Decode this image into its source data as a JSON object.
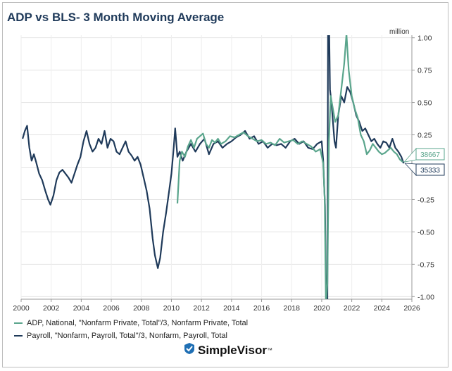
{
  "title": "ADP vs BLS- 3 Month Moving Average",
  "unit_label": "million",
  "brand": {
    "name": "SimpleVisor",
    "tm": "™"
  },
  "chart_data": {
    "type": "line",
    "title": "ADP vs BLS- 3 Month Moving Average",
    "ylabel": "million",
    "xlim": [
      2000,
      2026
    ],
    "ylim": [
      -1.02,
      1.02
    ],
    "x_ticks": [
      "2000",
      "2002",
      "2004",
      "2006",
      "2008",
      "2010",
      "2012",
      "2014",
      "2016",
      "2018",
      "2020",
      "2022",
      "2024",
      "2026"
    ],
    "y_ticks": [
      "1.00",
      "0.75",
      "0.50",
      "0.25",
      "",
      "-0.25",
      "-0.50",
      "-0.75",
      "-1.00"
    ],
    "y_tick_values": [
      1.0,
      0.75,
      0.5,
      0.25,
      0,
      -0.25,
      -0.5,
      -0.75,
      -1.0
    ],
    "grid": true,
    "legend_position": "bottom-left",
    "series": [
      {
        "name": "ADP, National, \"Nonfarm Private, Total\"/3, Nonfarm Private, Total",
        "color": "#5aa58c",
        "last_label": "38667",
        "points": [
          [
            2010.4,
            -0.28
          ],
          [
            2010.55,
            0.05
          ],
          [
            2010.7,
            0.12
          ],
          [
            2010.9,
            0.08
          ],
          [
            2011.1,
            0.16
          ],
          [
            2011.3,
            0.21
          ],
          [
            2011.5,
            0.15
          ],
          [
            2011.7,
            0.22
          ],
          [
            2011.9,
            0.24
          ],
          [
            2012.1,
            0.26
          ],
          [
            2012.3,
            0.18
          ],
          [
            2012.5,
            0.15
          ],
          [
            2012.7,
            0.21
          ],
          [
            2012.9,
            0.19
          ],
          [
            2013.1,
            0.22
          ],
          [
            2013.3,
            0.18
          ],
          [
            2013.6,
            0.2
          ],
          [
            2013.9,
            0.24
          ],
          [
            2014.2,
            0.23
          ],
          [
            2014.5,
            0.25
          ],
          [
            2014.8,
            0.27
          ],
          [
            2015.1,
            0.24
          ],
          [
            2015.4,
            0.22
          ],
          [
            2015.7,
            0.2
          ],
          [
            2016.0,
            0.21
          ],
          [
            2016.3,
            0.18
          ],
          [
            2016.6,
            0.19
          ],
          [
            2016.9,
            0.17
          ],
          [
            2017.2,
            0.22
          ],
          [
            2017.5,
            0.19
          ],
          [
            2017.8,
            0.2
          ],
          [
            2018.1,
            0.21
          ],
          [
            2018.4,
            0.18
          ],
          [
            2018.7,
            0.2
          ],
          [
            2019.0,
            0.18
          ],
          [
            2019.3,
            0.16
          ],
          [
            2019.6,
            0.12
          ],
          [
            2019.9,
            0.14
          ],
          [
            2020.1,
            0.03
          ],
          [
            2020.2,
            -0.25
          ],
          [
            2020.28,
            -1.05
          ],
          [
            2020.38,
            -0.9
          ],
          [
            2020.48,
            0.2
          ],
          [
            2020.6,
            0.55
          ],
          [
            2020.75,
            0.45
          ],
          [
            2020.9,
            0.35
          ],
          [
            2021.1,
            0.4
          ],
          [
            2021.3,
            0.6
          ],
          [
            2021.5,
            0.8
          ],
          [
            2021.65,
            1.03
          ],
          [
            2021.8,
            0.75
          ],
          [
            2022.0,
            0.55
          ],
          [
            2022.2,
            0.45
          ],
          [
            2022.4,
            0.38
          ],
          [
            2022.6,
            0.25
          ],
          [
            2022.8,
            0.2
          ],
          [
            2023.0,
            0.1
          ],
          [
            2023.2,
            0.13
          ],
          [
            2023.4,
            0.18
          ],
          [
            2023.6,
            0.15
          ],
          [
            2023.8,
            0.12
          ],
          [
            2024.0,
            0.1
          ],
          [
            2024.2,
            0.11
          ],
          [
            2024.4,
            0.13
          ],
          [
            2024.6,
            0.15
          ],
          [
            2024.8,
            0.12
          ],
          [
            2025.0,
            0.1
          ],
          [
            2025.2,
            0.06
          ],
          [
            2025.4,
            0.04
          ]
        ]
      },
      {
        "name": "Payroll, \"Nonfarm, Payroll, Total\"/3, Nonfarm, Payroll, Total",
        "color": "#1f3a5a",
        "last_label": "35333",
        "points": [
          [
            2000.1,
            0.22
          ],
          [
            2000.25,
            0.28
          ],
          [
            2000.4,
            0.32
          ],
          [
            2000.55,
            0.15
          ],
          [
            2000.7,
            0.05
          ],
          [
            2000.85,
            0.1
          ],
          [
            2001.0,
            0.04
          ],
          [
            2001.2,
            -0.05
          ],
          [
            2001.4,
            -0.1
          ],
          [
            2001.6,
            -0.18
          ],
          [
            2001.8,
            -0.25
          ],
          [
            2001.95,
            -0.29
          ],
          [
            2002.15,
            -0.22
          ],
          [
            2002.35,
            -0.1
          ],
          [
            2002.55,
            -0.04
          ],
          [
            2002.75,
            -0.02
          ],
          [
            2002.95,
            -0.05
          ],
          [
            2003.15,
            -0.08
          ],
          [
            2003.35,
            -0.12
          ],
          [
            2003.55,
            -0.05
          ],
          [
            2003.75,
            0.02
          ],
          [
            2003.95,
            0.08
          ],
          [
            2004.15,
            0.2
          ],
          [
            2004.35,
            0.28
          ],
          [
            2004.55,
            0.18
          ],
          [
            2004.75,
            0.12
          ],
          [
            2004.95,
            0.15
          ],
          [
            2005.15,
            0.22
          ],
          [
            2005.35,
            0.18
          ],
          [
            2005.55,
            0.28
          ],
          [
            2005.75,
            0.15
          ],
          [
            2005.95,
            0.22
          ],
          [
            2006.15,
            0.2
          ],
          [
            2006.35,
            0.12
          ],
          [
            2006.55,
            0.1
          ],
          [
            2006.75,
            0.15
          ],
          [
            2006.95,
            0.2
          ],
          [
            2007.15,
            0.12
          ],
          [
            2007.35,
            0.09
          ],
          [
            2007.55,
            0.05
          ],
          [
            2007.75,
            0.08
          ],
          [
            2007.95,
            0.02
          ],
          [
            2008.15,
            -0.08
          ],
          [
            2008.35,
            -0.18
          ],
          [
            2008.55,
            -0.32
          ],
          [
            2008.75,
            -0.55
          ],
          [
            2008.9,
            -0.68
          ],
          [
            2009.1,
            -0.78
          ],
          [
            2009.25,
            -0.7
          ],
          [
            2009.45,
            -0.5
          ],
          [
            2009.65,
            -0.35
          ],
          [
            2009.85,
            -0.18
          ],
          [
            2010.0,
            -0.05
          ],
          [
            2010.15,
            0.15
          ],
          [
            2010.25,
            0.3
          ],
          [
            2010.4,
            0.08
          ],
          [
            2010.55,
            0.12
          ],
          [
            2010.75,
            0.05
          ],
          [
            2011.0,
            0.12
          ],
          [
            2011.3,
            0.18
          ],
          [
            2011.6,
            0.12
          ],
          [
            2011.9,
            0.18
          ],
          [
            2012.2,
            0.22
          ],
          [
            2012.5,
            0.1
          ],
          [
            2012.8,
            0.18
          ],
          [
            2013.1,
            0.2
          ],
          [
            2013.4,
            0.15
          ],
          [
            2013.7,
            0.18
          ],
          [
            2014.0,
            0.2
          ],
          [
            2014.3,
            0.23
          ],
          [
            2014.6,
            0.25
          ],
          [
            2014.9,
            0.28
          ],
          [
            2015.2,
            0.22
          ],
          [
            2015.5,
            0.24
          ],
          [
            2015.8,
            0.18
          ],
          [
            2016.1,
            0.2
          ],
          [
            2016.4,
            0.15
          ],
          [
            2016.7,
            0.18
          ],
          [
            2017.0,
            0.17
          ],
          [
            2017.3,
            0.18
          ],
          [
            2017.6,
            0.15
          ],
          [
            2017.9,
            0.2
          ],
          [
            2018.2,
            0.22
          ],
          [
            2018.5,
            0.18
          ],
          [
            2018.8,
            0.2
          ],
          [
            2019.1,
            0.15
          ],
          [
            2019.4,
            0.14
          ],
          [
            2019.7,
            0.18
          ],
          [
            2020.0,
            0.2
          ],
          [
            2020.1,
            0.05
          ],
          [
            2020.22,
            -0.3
          ],
          [
            2020.3,
            -1.05
          ],
          [
            2020.38,
            -1.05
          ],
          [
            2020.42,
            1.05
          ],
          [
            2020.5,
            1.05
          ],
          [
            2020.55,
            0.6
          ],
          [
            2020.65,
            0.5
          ],
          [
            2020.75,
            0.35
          ],
          [
            2020.85,
            0.2
          ],
          [
            2020.95,
            0.15
          ],
          [
            2021.1,
            0.4
          ],
          [
            2021.3,
            0.55
          ],
          [
            2021.5,
            0.5
          ],
          [
            2021.7,
            0.62
          ],
          [
            2021.9,
            0.58
          ],
          [
            2022.1,
            0.5
          ],
          [
            2022.3,
            0.4
          ],
          [
            2022.5,
            0.35
          ],
          [
            2022.7,
            0.28
          ],
          [
            2022.9,
            0.3
          ],
          [
            2023.1,
            0.25
          ],
          [
            2023.3,
            0.2
          ],
          [
            2023.5,
            0.22
          ],
          [
            2023.7,
            0.18
          ],
          [
            2023.9,
            0.15
          ],
          [
            2024.1,
            0.2
          ],
          [
            2024.3,
            0.19
          ],
          [
            2024.5,
            0.15
          ],
          [
            2024.7,
            0.22
          ],
          [
            2024.9,
            0.15
          ],
          [
            2025.1,
            0.12
          ],
          [
            2025.3,
            0.08
          ],
          [
            2025.45,
            0.03
          ]
        ]
      }
    ]
  }
}
